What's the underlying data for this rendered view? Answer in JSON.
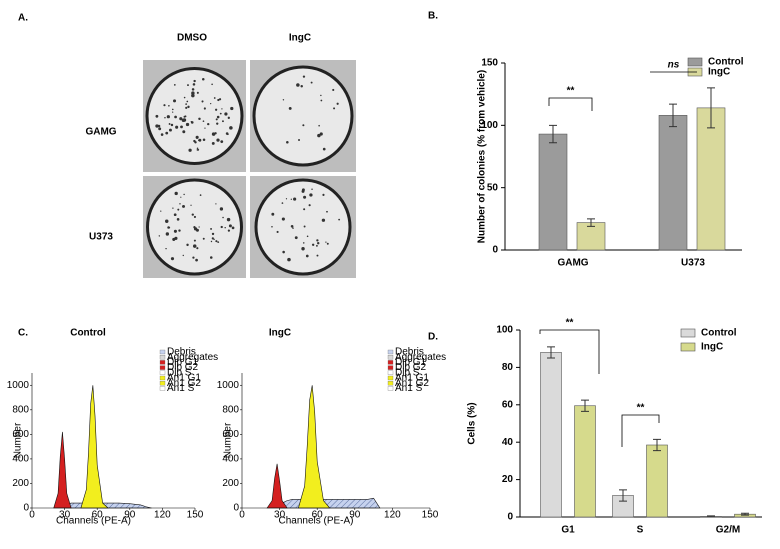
{
  "panel_a": {
    "panel_label": "A.",
    "columns": [
      "DMSO",
      "IngC"
    ],
    "rows": [
      "GAMG",
      "U373"
    ]
  },
  "chart_data": [
    {
      "type": "bar",
      "panel_label": "B.",
      "ylabel": "Number of colonies (% from vehicle)",
      "categories": [
        "GAMG",
        "U373"
      ],
      "series": [
        {
          "name": "Control",
          "color": "#9b9b9b",
          "values": [
            93,
            108
          ],
          "errors": [
            7,
            9
          ]
        },
        {
          "name": "IngC",
          "color": "#d9d99c",
          "values": [
            22,
            114
          ],
          "errors": [
            3,
            16
          ]
        }
      ],
      "ylim": [
        0,
        150
      ],
      "yticks": [
        0,
        50,
        100,
        150
      ],
      "annotations": [
        "**",
        "ns"
      ]
    },
    {
      "type": "area",
      "panel_label": "C.",
      "title": "Control",
      "xlabel": "Channels (PE-A)",
      "ylabel": "Number",
      "x": [
        0,
        10,
        20,
        24,
        26,
        28,
        30,
        32,
        36,
        40,
        45,
        50,
        52,
        54,
        56,
        58,
        60,
        65,
        70,
        80,
        90,
        100,
        105,
        110,
        120,
        130,
        140,
        150
      ],
      "series": [
        {
          "color": "#c6d2ee",
          "values": [
            null,
            null,
            null,
            null,
            null,
            null,
            0,
            30,
            40,
            40,
            40,
            40,
            40,
            40,
            40,
            40,
            40,
            40,
            40,
            40,
            35,
            25,
            10,
            0,
            null,
            null,
            null,
            null
          ]
        },
        {
          "color": "#d42020",
          "values": [
            null,
            null,
            0,
            120,
            420,
            620,
            400,
            120,
            0,
            null,
            null,
            null,
            null,
            null,
            null,
            null,
            null,
            null,
            null,
            null,
            null,
            null,
            null,
            null,
            null,
            null,
            null,
            null
          ]
        },
        {
          "color": "#f2ee1e",
          "values": [
            null,
            null,
            null,
            null,
            null,
            null,
            null,
            null,
            null,
            null,
            0,
            150,
            450,
            850,
            1000,
            750,
            350,
            40,
            0,
            null,
            null,
            null,
            null,
            null,
            null,
            null,
            null,
            null
          ]
        }
      ],
      "legend": [
        {
          "name": "Debris",
          "color": "#c6d2ee"
        },
        {
          "name": "Aggregates",
          "color": "#d8d8d8"
        },
        {
          "name": "Dip G1",
          "color": "#d42020"
        },
        {
          "name": "Dip G2",
          "color": "#d42020"
        },
        {
          "name": "Dip S",
          "color": "#ffffff"
        },
        {
          "name": "An1 G1",
          "color": "#f2ee1e"
        },
        {
          "name": "An1 G2",
          "color": "#f2ee1e"
        },
        {
          "name": "An1 S",
          "color": "#ffffff"
        }
      ],
      "xlim": [
        0,
        150
      ],
      "xticks": [
        0,
        30,
        60,
        90,
        120,
        150
      ],
      "ylim": [
        0,
        1100
      ],
      "yticks": [
        0,
        200,
        400,
        600,
        800,
        1000
      ]
    },
    {
      "type": "area",
      "title": "IngC",
      "xlabel": "Channels (PE-A)",
      "ylabel": "Number",
      "x": [
        0,
        10,
        20,
        24,
        26,
        28,
        30,
        32,
        36,
        40,
        45,
        50,
        52,
        54,
        56,
        58,
        60,
        65,
        70,
        80,
        90,
        100,
        105,
        110,
        120,
        130,
        140,
        150
      ],
      "series": [
        {
          "color": "#c6d2ee",
          "values": [
            null,
            null,
            null,
            null,
            null,
            null,
            0,
            40,
            60,
            70,
            70,
            70,
            70,
            70,
            70,
            70,
            70,
            70,
            70,
            70,
            70,
            70,
            80,
            0,
            null,
            null,
            null,
            null
          ]
        },
        {
          "color": "#d42020",
          "values": [
            null,
            null,
            0,
            60,
            240,
            360,
            220,
            60,
            0,
            null,
            null,
            null,
            null,
            null,
            null,
            null,
            null,
            null,
            null,
            null,
            null,
            null,
            null,
            null,
            null,
            null,
            null,
            null
          ]
        },
        {
          "color": "#f2ee1e",
          "values": [
            null,
            null,
            null,
            null,
            null,
            null,
            null,
            null,
            null,
            null,
            0,
            180,
            500,
            880,
            1000,
            780,
            380,
            60,
            0,
            null,
            null,
            null,
            null,
            null,
            null,
            null,
            null,
            null
          ]
        }
      ],
      "legend": [
        {
          "name": "Debris",
          "color": "#c6d2ee"
        },
        {
          "name": "Aggregates",
          "color": "#d8d8d8"
        },
        {
          "name": "Dip G1",
          "color": "#d42020"
        },
        {
          "name": "Dip G2",
          "color": "#d42020"
        },
        {
          "name": "Dip S",
          "color": "#ffffff"
        },
        {
          "name": "An1 G1",
          "color": "#f2ee1e"
        },
        {
          "name": "An1 G2",
          "color": "#f2ee1e"
        },
        {
          "name": "An1 S",
          "color": "#ffffff"
        }
      ],
      "xlim": [
        0,
        150
      ],
      "xticks": [
        0,
        30,
        60,
        90,
        120,
        150
      ],
      "ylim": [
        0,
        1100
      ],
      "yticks": [
        0,
        200,
        400,
        600,
        800,
        1000
      ]
    },
    {
      "type": "bar",
      "panel_label": "D.",
      "ylabel": "Cells (%)",
      "categories": [
        "G1",
        "S",
        "G2/M"
      ],
      "series": [
        {
          "name": "Control",
          "color": "#dadada",
          "values": [
            88,
            11.5,
            0.3
          ],
          "errors": [
            3,
            3,
            0.3
          ]
        },
        {
          "name": "IngC",
          "color": "#d6da8c",
          "values": [
            59.5,
            38.5,
            1.5
          ],
          "errors": [
            3,
            3,
            0.5
          ]
        }
      ],
      "ylim": [
        0,
        100
      ],
      "yticks": [
        0,
        20,
        40,
        60,
        80,
        100
      ],
      "annotations": [
        "**",
        "**"
      ]
    }
  ]
}
